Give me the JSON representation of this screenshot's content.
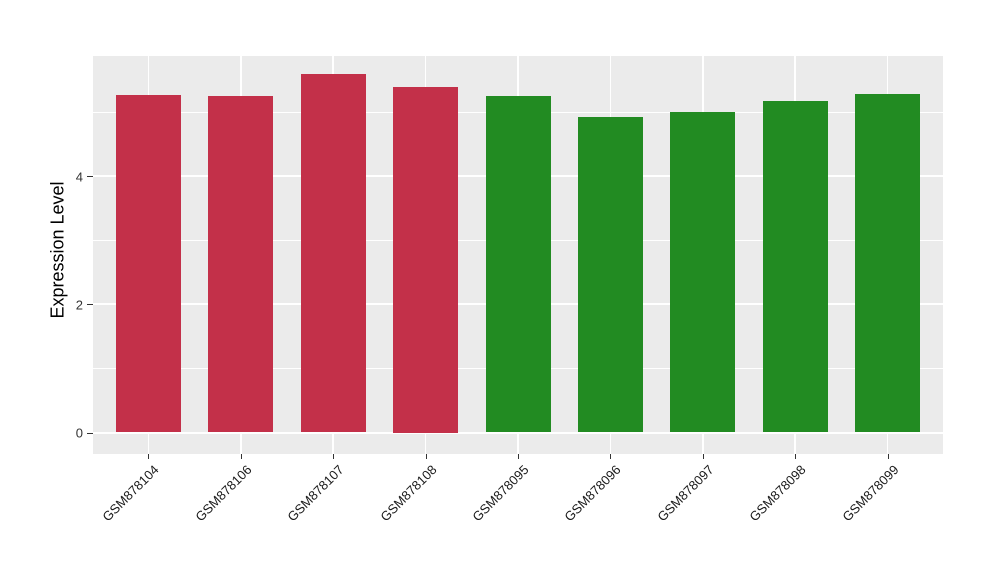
{
  "chart_data": {
    "type": "bar",
    "title": "",
    "xlabel": "",
    "ylabel": "Expression Level",
    "categories": [
      "GSM878104",
      "GSM878106",
      "GSM878107",
      "GSM878108",
      "GSM878095",
      "GSM878096",
      "GSM878097",
      "GSM878098",
      "GSM878099"
    ],
    "values": [
      5.27,
      5.25,
      5.6,
      5.39,
      5.26,
      4.92,
      5.0,
      5.17,
      5.29
    ],
    "bar_colors": [
      "#C33049",
      "#C33049",
      "#C33049",
      "#C33049",
      "#228B22",
      "#228B22",
      "#228B22",
      "#228B22",
      "#228B22"
    ],
    "groups": [
      "red",
      "red",
      "red",
      "red",
      "green",
      "green",
      "green",
      "green",
      "green"
    ],
    "yticks": [
      0,
      2,
      4
    ],
    "ytick_labels": [
      "0",
      "2",
      "4"
    ],
    "yticks_minor": [
      1,
      3,
      5
    ],
    "ylim": [
      0,
      5.88
    ],
    "grid": "on",
    "legend_position": "none",
    "x_tick_rotation_deg": 45,
    "panel_bg": "#EBEBEB",
    "grid_color": "#FFFFFF",
    "tick_color": "#333333"
  }
}
